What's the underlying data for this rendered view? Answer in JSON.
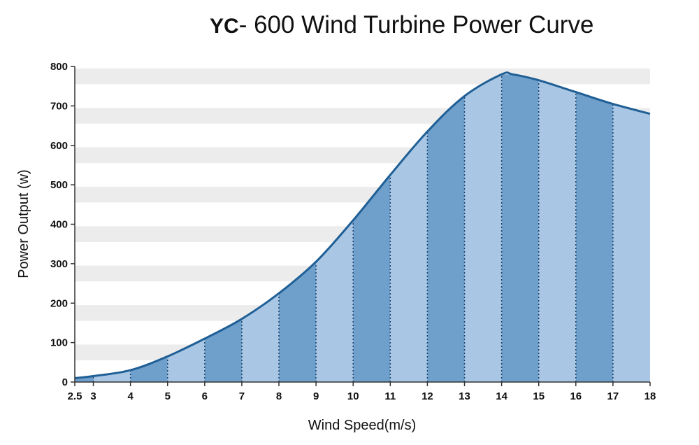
{
  "chart_data": {
    "type": "area",
    "title_prefix": "YC",
    "title_main": "- 600 Wind Turbine Power Curve",
    "xlabel": "Wind Speed(m/s)",
    "ylabel": "Power Output (w)",
    "x_ticks": [
      "2.5",
      "3",
      "4",
      "5",
      "6",
      "7",
      "8",
      "9",
      "10",
      "11",
      "12",
      "13",
      "14",
      "15",
      "16",
      "17",
      "18"
    ],
    "y_ticks": [
      "0",
      "100",
      "200",
      "300",
      "400",
      "500",
      "600",
      "700",
      "800"
    ],
    "xlim": [
      2.5,
      18
    ],
    "ylim": [
      0,
      800
    ],
    "grid": true,
    "series": [
      {
        "x": [
          2.5,
          3,
          4,
          5,
          6,
          7,
          8,
          9,
          10,
          11,
          12,
          13,
          14,
          14.3,
          15,
          16,
          17,
          18
        ],
        "y": [
          10,
          15,
          30,
          65,
          110,
          160,
          225,
          305,
          410,
          525,
          635,
          725,
          780,
          780,
          765,
          735,
          705,
          680
        ]
      }
    ],
    "colors": {
      "line": "#1f5f95",
      "fill_dark": "#6f9fcb",
      "fill_light": "#a9c7e4",
      "grid_band": "#ececec"
    }
  }
}
